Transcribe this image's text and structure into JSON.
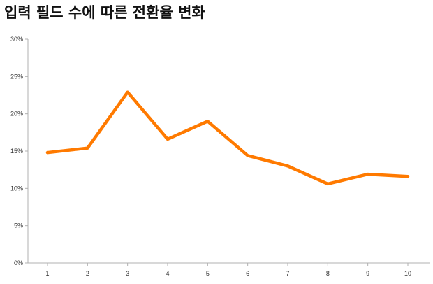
{
  "title": "입력 필드 수에 따른 전환율 변화",
  "chart_data": {
    "type": "line",
    "title": "입력 필드 수에 따른 전환율 변화",
    "xlabel": "",
    "ylabel": "",
    "x": [
      1,
      2,
      3,
      4,
      5,
      6,
      7,
      8,
      9,
      10
    ],
    "series": [
      {
        "values": [
          14.8,
          15.4,
          22.9,
          16.6,
          19.0,
          14.4,
          13.0,
          10.6,
          11.9,
          11.6
        ],
        "color": "#ff7a00"
      }
    ],
    "ylim": [
      0,
      30
    ],
    "y_ticks": [
      "0%",
      "5%",
      "10%",
      "15%",
      "20%",
      "25%",
      "30%"
    ],
    "x_ticks": [
      "1",
      "2",
      "3",
      "4",
      "5",
      "6",
      "7",
      "8",
      "9",
      "10"
    ],
    "grid": false,
    "legend": "none",
    "axis_color": "#b0b0b0"
  }
}
